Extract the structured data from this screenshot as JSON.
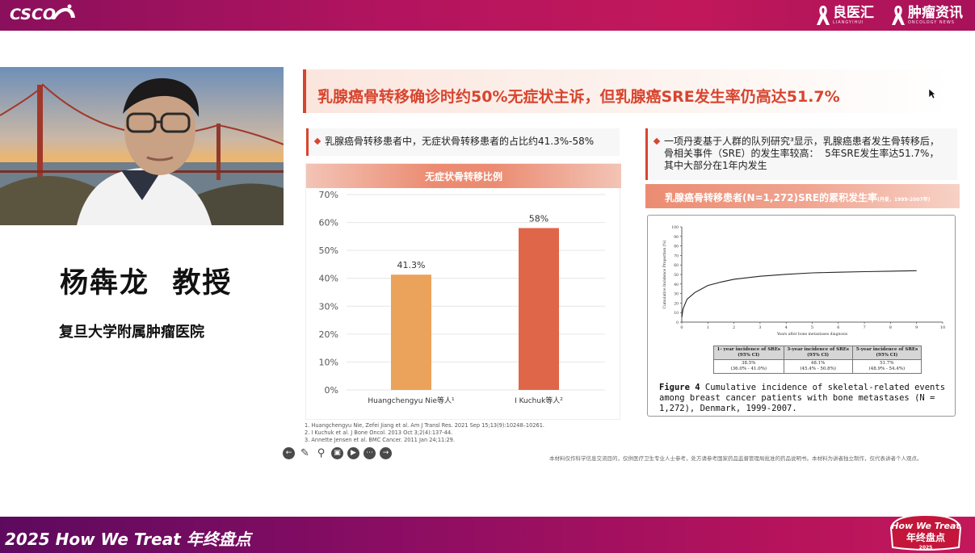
{
  "header": {
    "left_logo": "CSCO",
    "brand1_name": "良医汇",
    "brand1_sub": "LIANGYIHUI",
    "brand2_name": "肿瘤资讯",
    "brand2_sub": "ONCOLOGY NEWS"
  },
  "speaker": {
    "name": "杨犇龙  教授",
    "affiliation": "复旦大学附属肿瘤医院"
  },
  "slide": {
    "title": "乳腺癌骨转移确诊时约50%无症状主诉，但乳腺癌SRE发生率仍高达51.7%",
    "left_bullet": "乳腺癌骨转移患者中，无症状骨转移患者的占比约41.3%-58%",
    "right_bullet": "一项丹麦基于人群的队列研究³显示，乳腺癌患者发生骨转移后，\n骨相关事件（SRE）的发生率较高：  5年SRE发生率达51.7%，\n其中大部分在1年内发生",
    "curve_title": "乳腺癌骨转移患者(N=1,272)SRE的累积发生率",
    "curve_title_small": "(丹麦，1999-2007年)",
    "references": [
      "1. Huangchengyu Nie, Zefei Jiang et al. Am J Transl Res. 2021 Sep 15;13(9):10248–10261.",
      "2. I Kuchuk et al. J Bone Oncol. 2013 Oct 3;2(4):137-44.",
      "3. Annette Jensen et al. BMC Cancer. 2011 Jan 24;11:29."
    ],
    "disclaimer": "本材料仅作科学信息交流目的，仅供医疗卫生专业人士参考，处方请参考国家药品监督管理局批准的药品说明书。本材料为讲者独立制作，仅代表讲者个人观点。"
  },
  "figure": {
    "y_axis_label": "Cumulative Incidence Proportion (%)",
    "x_axis_label": "Years after bone metastases diagnosis",
    "x_ticks": [
      "0",
      "1",
      "2",
      "3",
      "4",
      "5",
      "6",
      "7",
      "8",
      "9",
      "10"
    ],
    "y_ticks": [
      "100",
      "90",
      "80",
      "70",
      "60",
      "50",
      "40",
      "30",
      "20",
      "10",
      "0"
    ],
    "table_headers": [
      "1- year incidence of SREs (95% CI)",
      "3-year incidence of SREs (95% CI)",
      "5-year incidence of SREs (95% CI)"
    ],
    "table_values": [
      "38.5%",
      "48.1%",
      "51.7%"
    ],
    "table_ci": [
      "(36.0% - 41.0%)",
      "(45.4% - 50.8%)",
      "(48.9% - 54.4%)"
    ],
    "caption_label": "Figure 4",
    "caption_text": " Cumulative incidence of skeletal-related events among breast cancer patients with bone metastases (N = 1,272), Denmark, 1999-2007."
  },
  "chart_data": {
    "type": "bar",
    "title": "无症状骨转移比例",
    "categories": [
      "Huangchengyu Nie等人¹",
      "I Kuchuk等人²"
    ],
    "values": [
      41.3,
      58
    ],
    "data_labels": [
      "41.3%",
      "58%"
    ],
    "y_ticks": [
      "70%",
      "60%",
      "50%",
      "40%",
      "30%",
      "20%",
      "10%",
      "0%"
    ],
    "ylim": [
      0,
      70
    ],
    "grid": true,
    "colors": [
      "#eba25a",
      "#e0664a"
    ]
  },
  "footer": {
    "banner_text": "2025 How We Treat 年终盘点",
    "badge_line1": "How We Treat",
    "badge_line2": "年终盘点",
    "badge_year": "2025"
  },
  "colors": {
    "accent": "#d7452f",
    "banner": "#b3145f"
  }
}
